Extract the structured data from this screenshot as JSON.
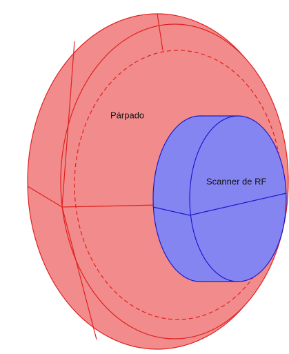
{
  "labels": {
    "eyelid": "Párpado",
    "scanner": "Scanner de RF"
  }
}
